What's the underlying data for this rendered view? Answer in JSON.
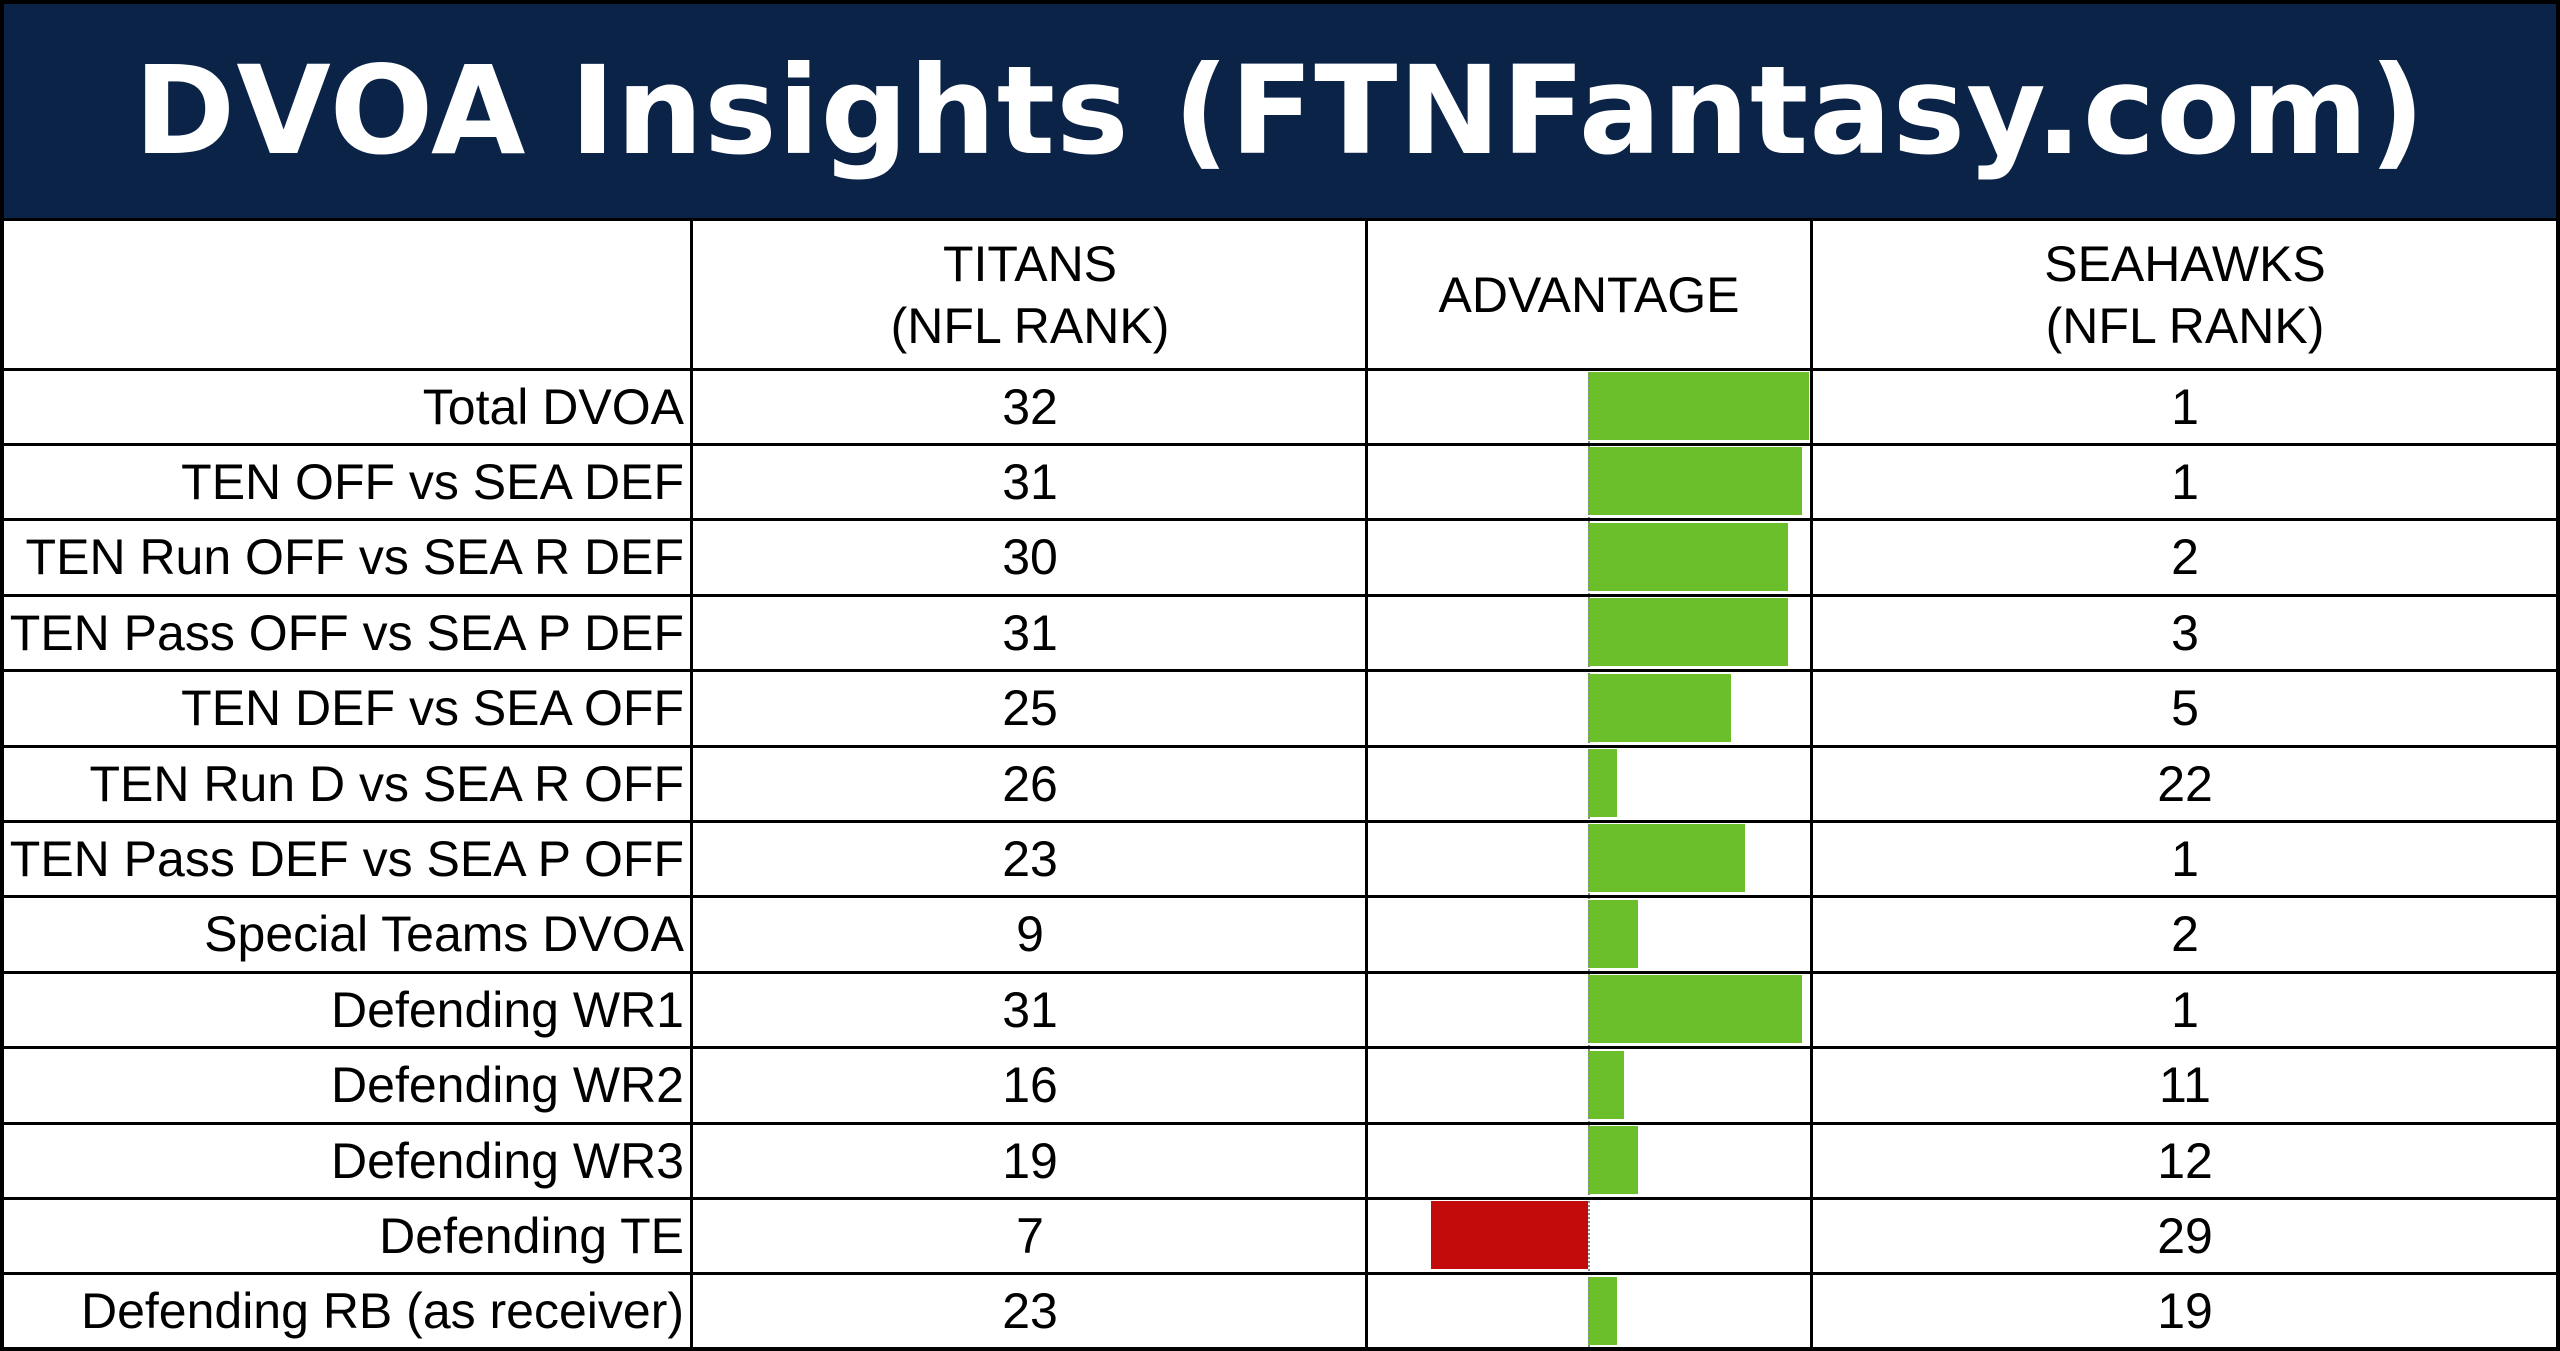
{
  "title": "DVOA Insights (FTNFantasy.com)",
  "header": {
    "titans_line1": "TITANS",
    "titans_line2": "(NFL RANK)",
    "advantage": "ADVANTAGE",
    "seahawks_line1": "SEAHAWKS",
    "seahawks_line2": "(NFL RANK)"
  },
  "colors": {
    "title_bg": "#0b2347",
    "positive": "#6abf2a",
    "negative": "#c30b0b"
  },
  "chart_data": {
    "type": "bar",
    "orientation": "horizontal",
    "series": [
      {
        "name": "ADVANTAGE",
        "values": [
          31,
          30,
          28,
          28,
          20,
          4,
          22,
          7,
          30,
          5,
          7,
          -22,
          4
        ]
      }
    ],
    "categories": [
      "Total DVOA",
      "TEN OFF vs SEA DEF",
      "TEN Run OFF vs SEA R DEF",
      "TEN Pass OFF vs SEA P DEF",
      "TEN DEF vs SEA OFF",
      "TEN Run D vs SEA R OFF",
      "TEN Pass DEF vs SEA P OFF",
      "Special Teams DVOA",
      "Defending WR1",
      "Defending WR2",
      "Defending WR3",
      "Defending TE",
      "Defending RB (as receiver)"
    ],
    "xlim": [
      -31,
      31
    ],
    "grid": false,
    "rows": [
      {
        "label": "Total DVOA",
        "titans": "32",
        "seahawks": "1"
      },
      {
        "label": "TEN OFF vs SEA DEF",
        "titans": "31",
        "seahawks": "1"
      },
      {
        "label": "TEN Run OFF vs SEA R DEF",
        "titans": "30",
        "seahawks": "2"
      },
      {
        "label": "TEN Pass OFF vs SEA P DEF",
        "titans": "31",
        "seahawks": "3"
      },
      {
        "label": "TEN DEF vs SEA OFF",
        "titans": "25",
        "seahawks": "5"
      },
      {
        "label": "TEN Run D vs SEA R OFF",
        "titans": "26",
        "seahawks": "22"
      },
      {
        "label": "TEN Pass DEF vs SEA P OFF",
        "titans": "23",
        "seahawks": "1"
      },
      {
        "label": "Special Teams DVOA",
        "titans": "9",
        "seahawks": "2"
      },
      {
        "label": "Defending WR1",
        "titans": "31",
        "seahawks": "1"
      },
      {
        "label": "Defending WR2",
        "titans": "16",
        "seahawks": "11"
      },
      {
        "label": "Defending WR3",
        "titans": "19",
        "seahawks": "12"
      },
      {
        "label": "Defending TE",
        "titans": "7",
        "seahawks": "29"
      },
      {
        "label": "Defending RB (as receiver)",
        "titans": "23",
        "seahawks": "19"
      }
    ]
  }
}
